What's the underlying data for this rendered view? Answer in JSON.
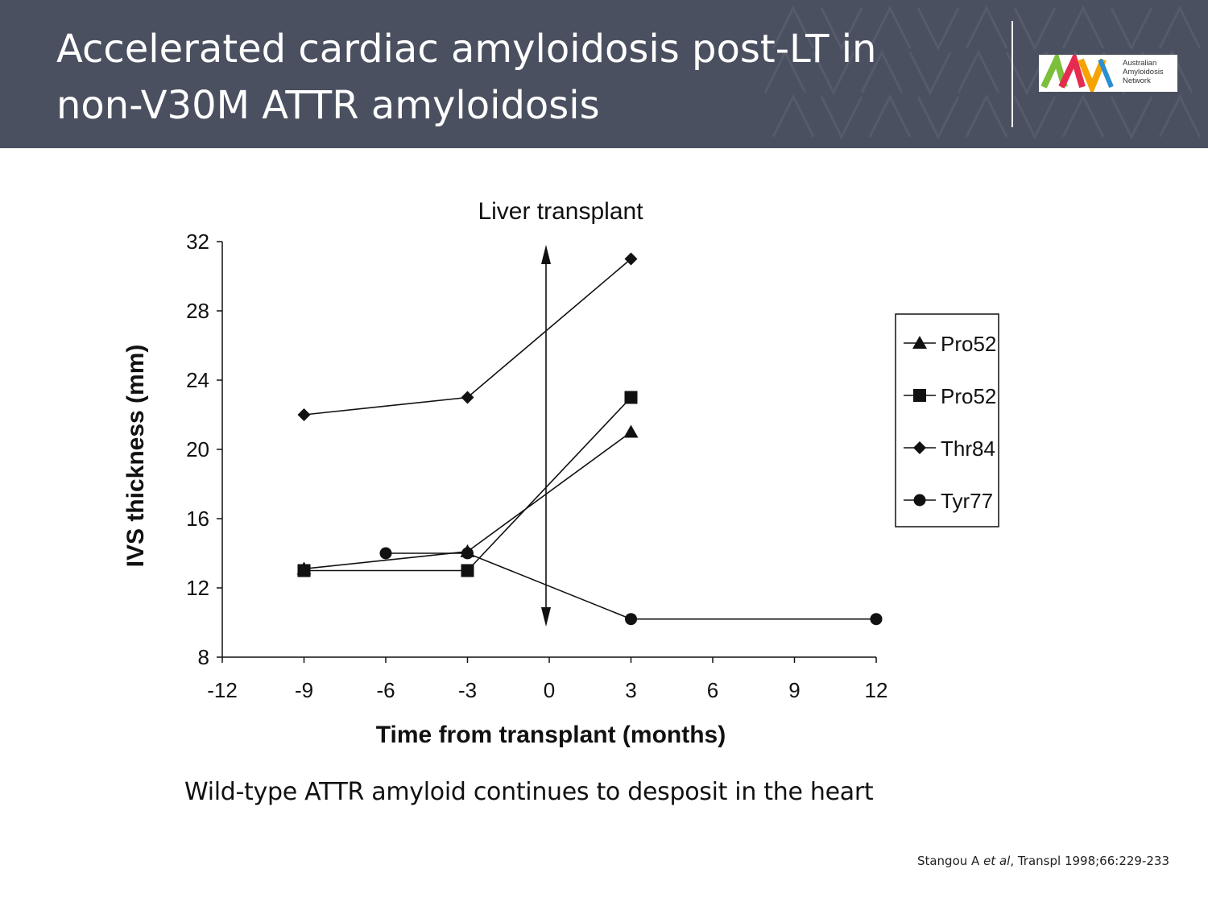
{
  "slide": {
    "title": "Accelerated cardiac amyloidosis post-LT in non-V30M ATTR amyloidosis",
    "caption": "Wild-type ATTR amyloid continues to desposit in the heart",
    "citation": {
      "author": "Stangou A ",
      "etal": "et al",
      "journal": ", Transpl 1998;66:229-233"
    }
  },
  "logo": {
    "mark": "AAN",
    "lines": [
      "Australian",
      "Amyloidosis",
      "Network"
    ],
    "colors": [
      "#7bbf3a",
      "#e52b50",
      "#f4a300",
      "#2a8fd0"
    ]
  },
  "chart_data": {
    "type": "line",
    "title": "",
    "annotation": "Liver transplant",
    "xlabel": "Time from transplant (months)",
    "ylabel": "IVS thickness (mm)",
    "xlim": [
      -12,
      12
    ],
    "ylim": [
      8,
      32
    ],
    "xticks": [
      -12,
      -9,
      -6,
      -3,
      0,
      3,
      6,
      9,
      12
    ],
    "yticks": [
      8,
      12,
      16,
      20,
      24,
      28,
      32
    ],
    "grid": false,
    "legend": "right",
    "transplant_marker_x": 0,
    "series": [
      {
        "name": "Pro52",
        "marker": "triangle",
        "points": [
          [
            -9,
            13.1
          ],
          [
            -3,
            14.1
          ],
          [
            3,
            21
          ]
        ]
      },
      {
        "name": "Pro52",
        "marker": "square",
        "points": [
          [
            -9,
            13
          ],
          [
            -3,
            13
          ],
          [
            3,
            23
          ]
        ]
      },
      {
        "name": "Thr84",
        "marker": "diamond",
        "points": [
          [
            -9,
            22
          ],
          [
            -3,
            23
          ],
          [
            3,
            31
          ]
        ]
      },
      {
        "name": "Tyr77",
        "marker": "circle",
        "points": [
          [
            -6,
            14
          ],
          [
            -3,
            14
          ],
          [
            3,
            10.2
          ],
          [
            12,
            10.2
          ]
        ]
      }
    ]
  }
}
